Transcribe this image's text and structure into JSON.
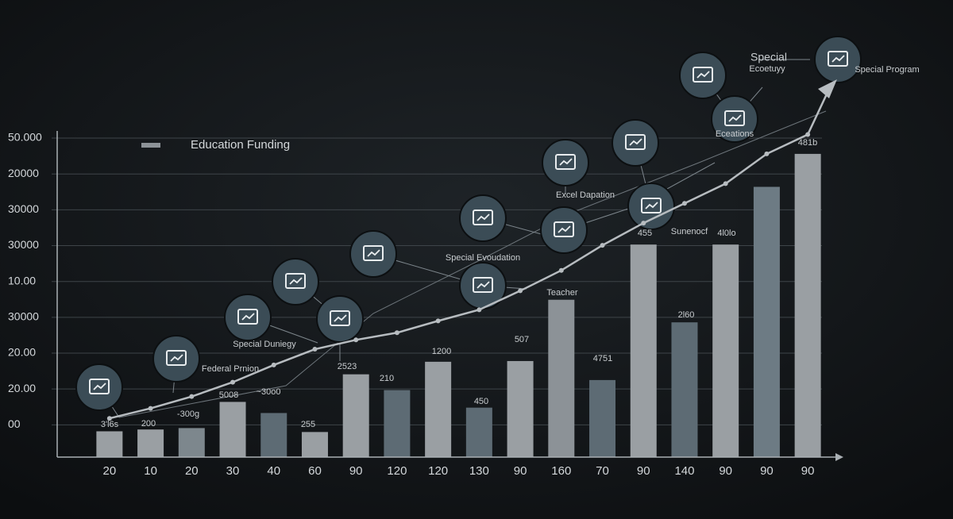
{
  "chart_data": {
    "type": "bar",
    "legend": {
      "label": "Education Funding",
      "position": "upper left"
    },
    "categories": [
      "20",
      "10",
      "20",
      "30",
      "40",
      "60",
      "90",
      "120",
      "120",
      "130",
      "90",
      "160",
      "70",
      "90",
      "140",
      "90",
      "90",
      "90"
    ],
    "series": [
      {
        "name": "Education Funding",
        "type": "bar",
        "color": "#8c9297",
        "colors": [
          "#9a9fa3",
          "#9a9fa3",
          "#7d878d",
          "#9a9fa3",
          "#5d6b74",
          "#9a9fa3",
          "#9a9fa3",
          "#5d6b74",
          "#9a9fa3",
          "#5d6b74",
          "#9a9fa3",
          "#8c9297",
          "#5d6b74",
          "#9a9fa3",
          "#5d6b74",
          "#9a9fa3",
          "#6d7b84",
          "#9a9fa3"
        ],
        "values": [
          -0.18,
          -0.13,
          -0.09,
          0.64,
          0.33,
          -0.2,
          1.41,
          0.97,
          1.76,
          0.48,
          1.78,
          3.49,
          1.25,
          5.03,
          2.86,
          5.03,
          6.64,
          7.56
        ]
      },
      {
        "type": "line",
        "color": "#b7bcc0",
        "values": [
          0.18,
          0.46,
          0.79,
          1.19,
          1.67,
          2.11,
          2.37,
          2.57,
          2.9,
          3.21,
          3.74,
          4.31,
          5.01,
          5.63,
          6.18,
          6.73,
          7.56,
          8.1
        ]
      }
    ],
    "ylim": [
      -0.9,
      8.2
    ],
    "yticks": [
      {
        "value": 0,
        "label": "00"
      },
      {
        "value": 1,
        "label": "20.00"
      },
      {
        "value": 2,
        "label": "20.00"
      },
      {
        "value": 3,
        "label": "30000"
      },
      {
        "value": 4,
        "label": "10.00"
      },
      {
        "value": 5,
        "label": "30000"
      },
      {
        "value": 6,
        "label": "30000"
      },
      {
        "value": 7,
        "label": "20000"
      },
      {
        "value": 8,
        "label": "50.000"
      }
    ],
    "grid": true,
    "annotations": [
      "3'l6s",
      "200",
      "-300g",
      "5008",
      "~30o0",
      "255",
      "2523",
      "210",
      "1200",
      "450",
      "507",
      "4751",
      "Teacher",
      "455",
      "Sunenocf",
      "4l0lo",
      "2l60",
      "481b",
      "Special",
      "Ecoetuyy",
      "Special Program",
      "Eceations",
      "Excel Dapation",
      "Special Evoudation",
      "Special Duniegy",
      "Federal Prnion"
    ]
  }
}
